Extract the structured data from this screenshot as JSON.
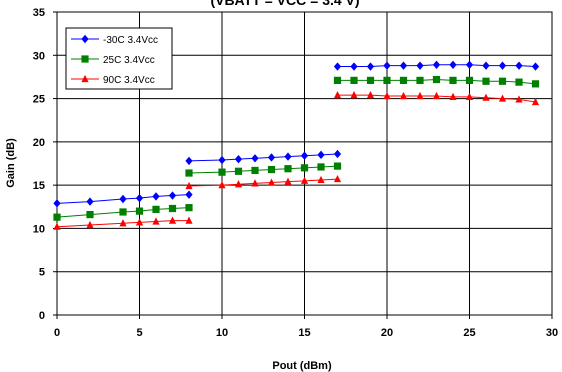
{
  "chart_data": {
    "type": "line",
    "title": "(VBATT = VCC = 3.4 V)",
    "xlabel": "Pout (dBm)",
    "ylabel": "Gain (dB)",
    "xlim": [
      0,
      30
    ],
    "ylim": [
      0,
      35
    ],
    "x_ticks": [
      "0",
      "5",
      "10",
      "15",
      "20",
      "25",
      "30"
    ],
    "y_ticks": [
      "0",
      "5",
      "10",
      "15",
      "20",
      "25",
      "30",
      "35"
    ],
    "grid": true,
    "legend_position": "top-left",
    "series": [
      {
        "name": "-30C 3.4Vcc",
        "color": "#0000ff",
        "marker": "diamond",
        "segments": [
          {
            "x": [
              0,
              2,
              4,
              5,
              6,
              7,
              8
            ],
            "y": [
              12.9,
              13.1,
              13.4,
              13.5,
              13.7,
              13.8,
              13.9
            ]
          },
          {
            "x": [
              8,
              10,
              11,
              12,
              13,
              14,
              15,
              16,
              17
            ],
            "y": [
              17.8,
              17.9,
              18.0,
              18.1,
              18.2,
              18.3,
              18.4,
              18.5,
              18.6
            ]
          },
          {
            "x": [
              17,
              18,
              19,
              20,
              21,
              22,
              23,
              24,
              25,
              26,
              27,
              28,
              29
            ],
            "y": [
              28.7,
              28.7,
              28.7,
              28.8,
              28.8,
              28.8,
              28.9,
              28.9,
              28.9,
              28.8,
              28.8,
              28.8,
              28.7
            ]
          }
        ]
      },
      {
        "name": "25C 3.4Vcc",
        "color": "#008000",
        "marker": "square",
        "segments": [
          {
            "x": [
              0,
              2,
              4,
              5,
              6,
              7,
              8
            ],
            "y": [
              11.3,
              11.6,
              11.9,
              12.0,
              12.2,
              12.3,
              12.4
            ]
          },
          {
            "x": [
              8,
              10,
              11,
              12,
              13,
              14,
              15,
              16,
              17
            ],
            "y": [
              16.4,
              16.5,
              16.6,
              16.7,
              16.8,
              16.9,
              17.0,
              17.1,
              17.2
            ]
          },
          {
            "x": [
              17,
              18,
              19,
              20,
              21,
              22,
              23,
              24,
              25,
              26,
              27,
              28,
              29
            ],
            "y": [
              27.1,
              27.1,
              27.1,
              27.1,
              27.1,
              27.1,
              27.2,
              27.1,
              27.1,
              27.0,
              27.0,
              26.9,
              26.7
            ]
          }
        ]
      },
      {
        "name": "90C 3.4Vcc",
        "color": "#ff0000",
        "marker": "triangle",
        "segments": [
          {
            "x": [
              0,
              2,
              4,
              5,
              6,
              7,
              8
            ],
            "y": [
              10.2,
              10.4,
              10.6,
              10.7,
              10.8,
              10.9,
              10.9
            ]
          },
          {
            "x": [
              8,
              10,
              11,
              12,
              13,
              14,
              15,
              16,
              17
            ],
            "y": [
              14.9,
              15.0,
              15.1,
              15.2,
              15.3,
              15.4,
              15.5,
              15.6,
              15.7
            ]
          },
          {
            "x": [
              17,
              18,
              19,
              20,
              21,
              22,
              23,
              24,
              25,
              26,
              27,
              28,
              29
            ],
            "y": [
              25.4,
              25.4,
              25.4,
              25.3,
              25.3,
              25.3,
              25.3,
              25.2,
              25.2,
              25.1,
              25.0,
              24.9,
              24.6
            ]
          }
        ]
      }
    ]
  }
}
